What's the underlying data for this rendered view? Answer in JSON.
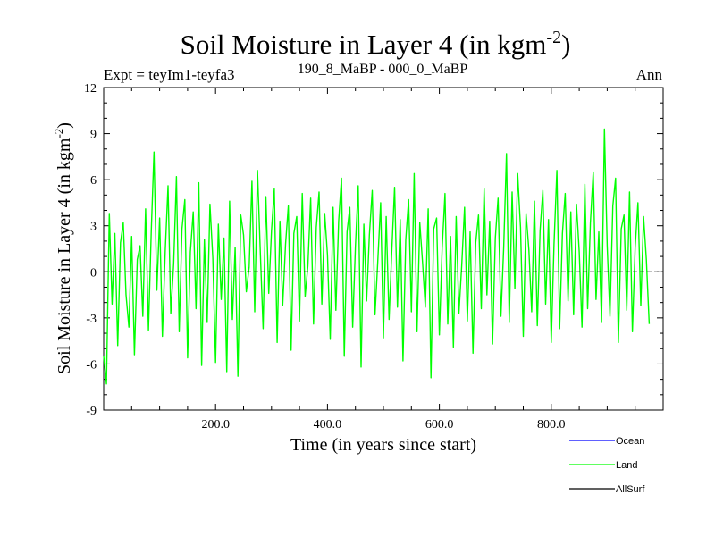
{
  "chart_data": {
    "type": "line",
    "title": {
      "main": "Soil Moisture in Layer 4 (in kgm",
      "sup": "-2",
      "close": ")"
    },
    "subtitle_left": "Expt = teyIm1-teyfa3",
    "subtitle_center": "190_8_MaBP - 000_0_MaBP",
    "subtitle_right": "Ann",
    "xlabel": "Time (in years since start)",
    "ylabel": {
      "main": "Soil Moisture in Layer 4 (in kgm",
      "sup": "-2",
      "close": ")"
    },
    "xlim": [
      0,
      1000
    ],
    "ylim": [
      -9,
      12
    ],
    "xticks": [
      200,
      400,
      600,
      800
    ],
    "xtick_labels": [
      "200.0",
      "400.0",
      "600.0",
      "800.0"
    ],
    "yticks": [
      -9,
      -6,
      -3,
      0,
      3,
      6,
      9,
      12
    ],
    "ytick_labels": [
      "-9",
      "-6",
      "-3",
      "0",
      "3",
      "6",
      "9",
      "12"
    ],
    "zero_line": 0,
    "series": [
      {
        "name": "Land",
        "color": "#00ff00",
        "x_start": 0,
        "x_step": 5,
        "values": [
          -5.5,
          -7.3,
          3.8,
          -2.1,
          2.5,
          -4.8,
          1.9,
          3.2,
          -1.5,
          -3.6,
          2.3,
          -5.4,
          0.8,
          1.7,
          -2.9,
          4.1,
          -3.8,
          2.6,
          7.8,
          -1.2,
          3.5,
          -4.2,
          1.4,
          5.6,
          -2.7,
          0.5,
          6.2,
          -3.9,
          2.8,
          4.7,
          -5.6,
          1.3,
          3.9,
          -2.4,
          5.8,
          -6.1,
          2.1,
          -3.3,
          4.4,
          0.9,
          -5.9,
          3.1,
          -1.8,
          2.2,
          -6.5,
          4.6,
          -3.1,
          1.6,
          -6.8,
          3.7,
          2.4,
          -1.3,
          0.3,
          5.9,
          -2.6,
          6.6,
          1.2,
          -3.7,
          4.9,
          -1.4,
          2.7,
          5.4,
          -4.6,
          3.3,
          -2.2,
          1.8,
          4.3,
          -5.1,
          2.5,
          3.6,
          -3.2,
          5.1,
          -1.6,
          0.4,
          4.8,
          -3.4,
          2.9,
          5.2,
          -2.1,
          3.8,
          1.1,
          -4.4,
          4.2,
          -2.5,
          3.3,
          6.1,
          -5.5,
          2.6,
          4.2,
          -3.6,
          1.7,
          5.6,
          -6.2,
          3.1,
          -1.9,
          2.4,
          5.3,
          -2.8,
          0.7,
          4.5,
          -4.3,
          3.6,
          -3.1,
          1.4,
          5.5,
          -2.3,
          3.4,
          -5.8,
          2.1,
          4.7,
          -2.6,
          6.4,
          -3.9,
          3.2,
          0.6,
          -2.3,
          4.1,
          -6.9,
          2.8,
          3.5,
          -4.1,
          1.5,
          5.1,
          -3.4,
          2.3,
          -4.9,
          3.6,
          -2.7,
          0.4,
          4.2,
          -3.2,
          2.6,
          -5.3,
          1.9,
          3.7,
          -2.4,
          5.4,
          -1.5,
          3.3,
          -4.7,
          2.2,
          4.8,
          -2.9,
          1.6,
          7.7,
          -3.3,
          5.2,
          -1.1,
          6.4,
          2.9,
          -4.2,
          3.8,
          1.4,
          -2.6,
          4.6,
          -3.5,
          2.7,
          5.3,
          -2.1,
          3.4,
          -4.6,
          1.8,
          6.6,
          -3.7,
          2.5,
          5.1,
          -1.9,
          3.9,
          -2.8,
          4.4,
          1.3,
          -3.6,
          5.7,
          -2.4,
          3.2,
          6.5,
          -1.8,
          2.6,
          -3.3,
          9.3,
          1.7,
          -2.9,
          4.3,
          6.1,
          -4.6,
          2.8,
          3.7,
          -2.5,
          5.2,
          -3.9,
          1.6,
          4.5,
          -2.2,
          3.6,
          0.8,
          -3.4
        ]
      }
    ],
    "legend": [
      {
        "label": "Ocean",
        "color": "#0000ff"
      },
      {
        "label": "Land",
        "color": "#00ff00"
      },
      {
        "label": "AllSurf",
        "color": "#000000"
      }
    ],
    "legend_position": "bottom-right"
  }
}
